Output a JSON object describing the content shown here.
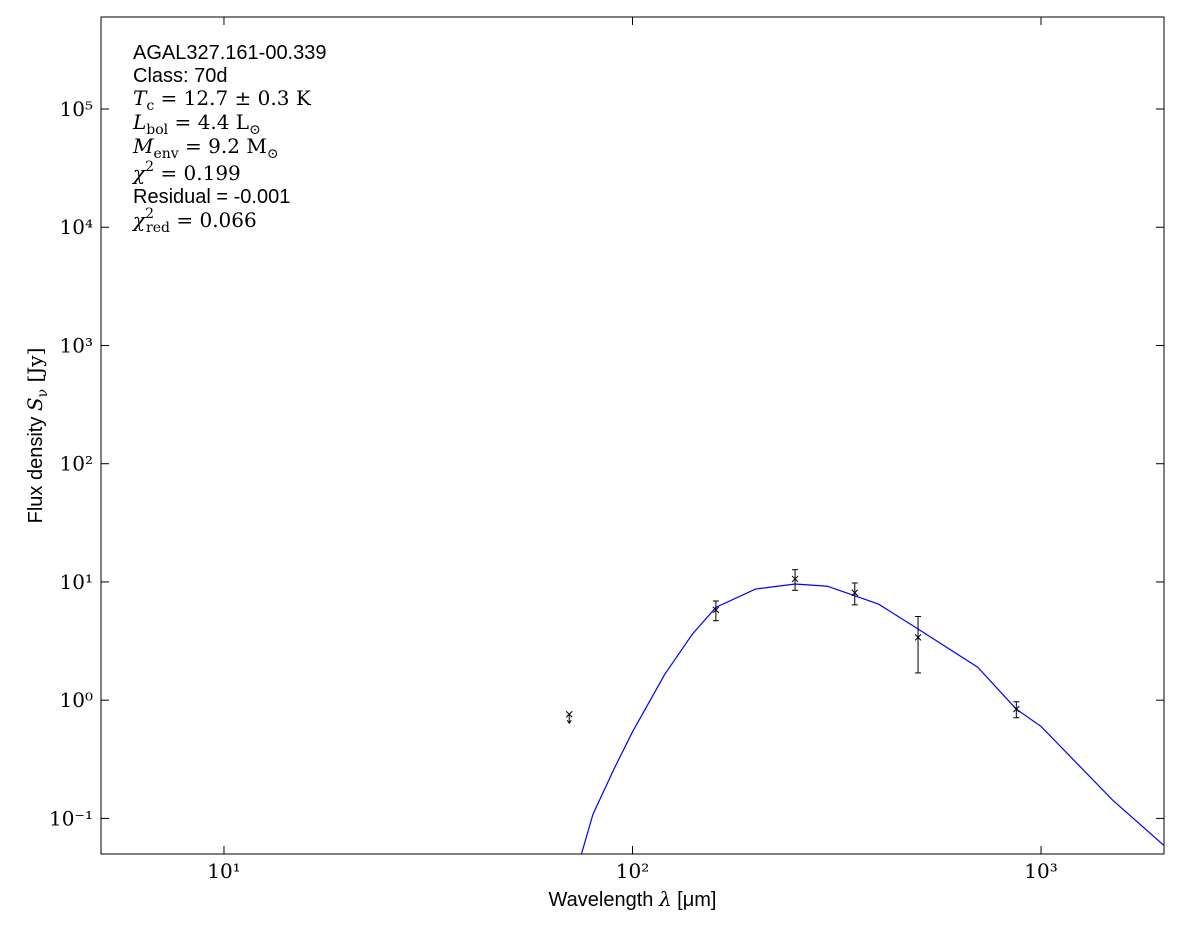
{
  "chart_data": {
    "type": "scatter",
    "annotations": [
      "AGAL327.161-00.339",
      "Class: 70d",
      {
        "symbol": "T",
        "sub": "c",
        "text": " = 12.7 ± 0.3 K"
      },
      {
        "symbol": "L",
        "sub": "bol",
        "text": " = 4.4 L",
        "sub2": "⊙"
      },
      {
        "symbol": "M",
        "sub": "env",
        "text": " = 9.2 M",
        "sub2": "⊙"
      },
      {
        "symbol": "χ",
        "sup": "2",
        "text": " = 0.199"
      },
      "Residual = -0.001",
      {
        "symbol": "χ",
        "sup": "2",
        "sub": "red",
        "text": " = 0.066"
      }
    ],
    "x_label": {
      "text": "Wavelength ",
      "symbol": "λ",
      "unit": " [μm]"
    },
    "y_label": {
      "text": "Flux density ",
      "symbol": "S",
      "sub": "ν",
      "unit": " [Jy]"
    },
    "xscale": "log",
    "yscale": "log",
    "xlim": [
      5,
      2000
    ],
    "ylim": [
      0.05,
      600000
    ],
    "xticks": [
      {
        "value": 10,
        "label": "10¹"
      },
      {
        "value": 100,
        "label": "10²"
      },
      {
        "value": 1000,
        "label": "10³"
      }
    ],
    "yticks": [
      {
        "value": 0.1,
        "label": "10⁻¹"
      },
      {
        "value": 1,
        "label": "10⁰"
      },
      {
        "value": 10,
        "label": "10¹"
      },
      {
        "value": 100,
        "label": "10²"
      },
      {
        "value": 1000,
        "label": "10³"
      },
      {
        "value": 10000,
        "label": "10⁴"
      },
      {
        "value": 100000,
        "label": "10⁵"
      }
    ],
    "model": {
      "color": "#0000ff",
      "x": [
        75,
        80,
        90,
        100,
        120,
        140,
        160,
        200,
        250,
        300,
        400,
        500,
        700,
        870,
        1000,
        1500,
        2000
      ],
      "values": [
        0.05,
        0.108,
        0.26,
        0.54,
        1.66,
        3.6,
        6.1,
        8.7,
        9.6,
        9.2,
        6.5,
        4.0,
        1.9,
        0.84,
        0.6,
        0.142,
        0.059
      ]
    },
    "points": {
      "color": "#000000",
      "x": [
        160,
        250,
        350,
        500,
        870
      ],
      "values": [
        5.8,
        10.6,
        8.1,
        3.4,
        0.84
      ],
      "errors": [
        1.1,
        2.1,
        1.7,
        1.7,
        0.13
      ]
    },
    "upper_limits": {
      "color": "#000000",
      "x": [
        70
      ],
      "values": [
        0.76
      ]
    }
  }
}
